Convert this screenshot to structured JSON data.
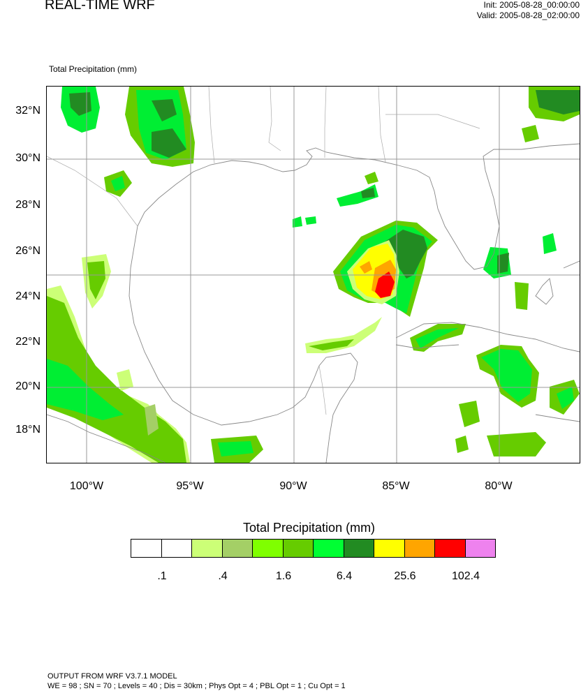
{
  "header": {
    "title": "REAL-TIME WRF",
    "init": "Init: 2005-08-28_00:00:00",
    "valid": "Valid: 2005-08-28_02:00:00"
  },
  "subtitle": "Total Precipitation   (mm)",
  "map": {
    "lat_labels": [
      "32°N",
      "30°N",
      "28°N",
      "26°N",
      "24°N",
      "22°N",
      "20°N",
      "18°N"
    ],
    "lon_labels": [
      "100°W",
      "95°W",
      "90°W",
      "85°W",
      "80°W"
    ],
    "gridline_color": "#999999",
    "coast_color": "#888888"
  },
  "colorbar": {
    "title": "Total Precipitation  (mm)",
    "colors": [
      "#ffffff",
      "#ffffff",
      "#ccff77",
      "#a4cf66",
      "#7fff00",
      "#66cc00",
      "#00ff33",
      "#228b22",
      "#ffff00",
      "#ffa500",
      "#ff0000",
      "#ee82ee"
    ],
    "labels": [
      ".1",
      ".4",
      "1.6",
      "6.4",
      "25.6",
      "102.4"
    ]
  },
  "footer": {
    "line1": "OUTPUT FROM WRF V3.7.1 MODEL",
    "line2": "WE = 98 ; SN = 70 ; Levels = 40 ; Dis = 30km ; Phys Opt = 4 ; PBL Opt = 1 ; Cu Opt = 1"
  }
}
